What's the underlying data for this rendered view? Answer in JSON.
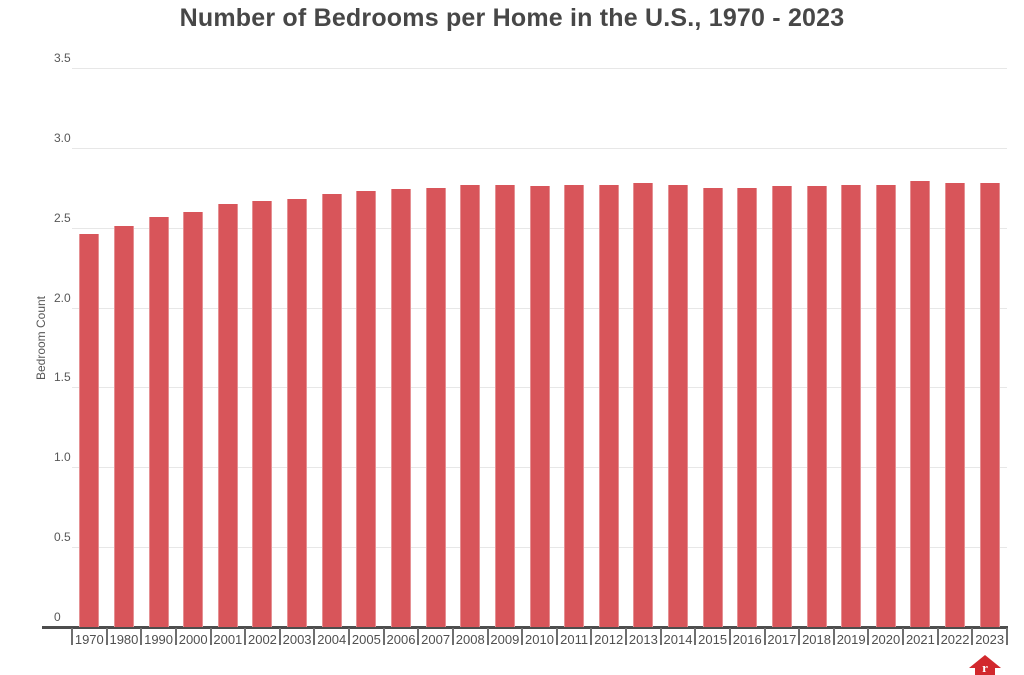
{
  "chart_data": {
    "type": "bar",
    "title": "Number of Bedrooms per Home in the U.S., 1970 - 2023",
    "xlabel": "",
    "ylabel": "Bedroom Count",
    "ylim": [
      0,
      3.5
    ],
    "yticks": [
      "0",
      "0.5",
      "1.0",
      "1.5",
      "2.0",
      "2.5",
      "3.0",
      "3.5"
    ],
    "grid": "horizontal-light",
    "legend": "none",
    "bar_color": "#d8555a",
    "categories": [
      "1970",
      "1980",
      "1990",
      "2000",
      "2001",
      "2002",
      "2003",
      "2004",
      "2005",
      "2006",
      "2007",
      "2008",
      "2009",
      "2010",
      "2011",
      "2012",
      "2013",
      "2014",
      "2015",
      "2016",
      "2017",
      "2018",
      "2019",
      "2020",
      "2021",
      "2022",
      "2023"
    ],
    "values": [
      2.46,
      2.51,
      2.57,
      2.6,
      2.65,
      2.67,
      2.68,
      2.71,
      2.73,
      2.74,
      2.75,
      2.77,
      2.77,
      2.76,
      2.77,
      2.77,
      2.78,
      2.77,
      2.75,
      2.75,
      2.76,
      2.76,
      2.77,
      2.77,
      2.79,
      2.78,
      2.78
    ]
  },
  "branding": {
    "icon": "house-logo",
    "color": "#d2282d"
  }
}
